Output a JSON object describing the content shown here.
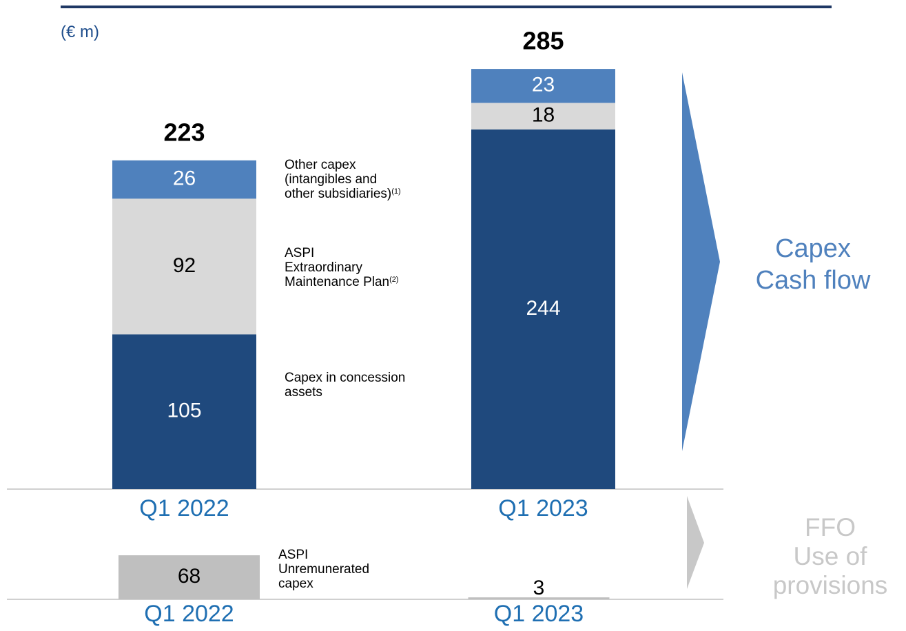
{
  "unit_label": "(€ m)",
  "chart_data": [
    {
      "type": "stacked_bar",
      "categories": [
        "Q1 2022",
        "Q1 2023"
      ],
      "totals": [
        223,
        285
      ],
      "ylim": [
        0,
        300
      ],
      "series": [
        {
          "name": "Capex in concession\nassets",
          "color": "#1f497d",
          "label_color": "#ffffff",
          "values": [
            105,
            244
          ]
        },
        {
          "name": "ASPI\nExtraordinary\nMaintenance Plan",
          "footnote": "(2)",
          "color": "#d9d9d9",
          "label_color": "#000000",
          "values": [
            92,
            18
          ]
        },
        {
          "name": "Other capex\n(intangibles and\nother subsidiaries)",
          "footnote": "(1)",
          "color": "#4f81bd",
          "label_color": "#ffffff",
          "values": [
            26,
            23
          ]
        }
      ]
    },
    {
      "type": "bar",
      "categories": [
        "Q1 2022",
        "Q1 2023"
      ],
      "name": "ASPI\nUnremunerated\ncapex",
      "color": "#bfbfbf",
      "label_color": "#000000",
      "ylim": [
        0,
        100
      ],
      "values": [
        68,
        3
      ]
    }
  ],
  "arrows": [
    {
      "label": "Capex\nCash flow",
      "color": "#4f81bd"
    },
    {
      "label": "FFO\nUse of\nprovisions",
      "color": "#c8c8c8"
    }
  ]
}
